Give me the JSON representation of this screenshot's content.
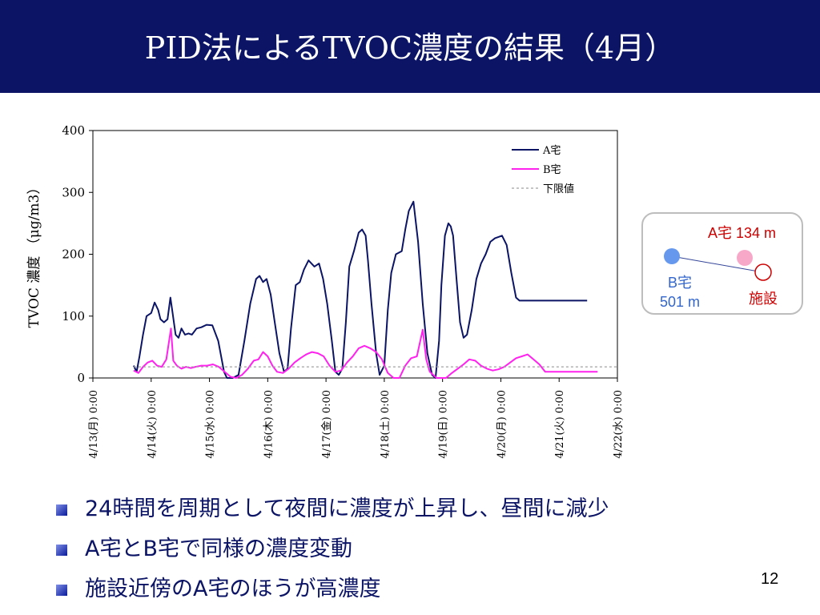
{
  "slide": {
    "title": "PID法によるTVOC濃度の結果（4月）",
    "page_number": "12",
    "bullets": [
      "24時間を周期として夜間に濃度が上昇し、昼間に減少",
      "A宅とB宅で同様の濃度変動",
      "施設近傍のA宅のほうが高濃度"
    ]
  },
  "inset": {
    "house_a_label": "A宅 134 m",
    "house_b_name": "B宅",
    "house_b_distance": "501 m",
    "facility_label": "施設"
  },
  "colors": {
    "header_bg": "#0b1465",
    "series_a": "#0b1465",
    "series_b": "#ff22ee",
    "limit": "#a0a0a0",
    "house_a_dot": "#f7a8c8",
    "house_b_dot": "#6699ee",
    "label_red": "#cc0000",
    "label_blue": "#3366cc"
  },
  "chart_data": {
    "type": "line",
    "ylabel": "TVOC 濃度 （μg/m3）",
    "ylim": [
      0,
      400
    ],
    "yticks": [
      0,
      100,
      200,
      300,
      400
    ],
    "xlim": [
      0,
      9
    ],
    "xticks": [
      "4/13(月) 0:00",
      "4/14(火) 0:00",
      "4/15(水) 0:00",
      "4/16(木) 0:00",
      "4/17(金) 0:00",
      "4/18(土) 0:00",
      "4/19(日) 0:00",
      "4/20(月) 0:00",
      "4/21(火) 0:00",
      "4/22(水) 0:00"
    ],
    "legend_position": "top-right",
    "series": [
      {
        "name": "A宅",
        "x": [
          0.7,
          0.75,
          0.8,
          0.86,
          0.92,
          1.0,
          1.06,
          1.12,
          1.16,
          1.22,
          1.28,
          1.33,
          1.36,
          1.42,
          1.47,
          1.52,
          1.58,
          1.64,
          1.7,
          1.78,
          1.86,
          1.95,
          2.05,
          2.15,
          2.25,
          2.3,
          2.4,
          2.5,
          2.6,
          2.7,
          2.8,
          2.86,
          2.92,
          2.98,
          3.05,
          3.12,
          3.2,
          3.28,
          3.34,
          3.4,
          3.48,
          3.55,
          3.62,
          3.7,
          3.8,
          3.88,
          3.95,
          4.02,
          4.1,
          4.16,
          4.22,
          4.28,
          4.34,
          4.4,
          4.48,
          4.56,
          4.62,
          4.68,
          4.72,
          4.78,
          4.86,
          4.92,
          5.0,
          5.06,
          5.12,
          5.2,
          5.3,
          5.36,
          5.42,
          5.5,
          5.58,
          5.66,
          5.74,
          5.82,
          5.88,
          5.94,
          5.98,
          6.04,
          6.1,
          6.14,
          6.18,
          6.24,
          6.3,
          6.36,
          6.42,
          6.5,
          6.58,
          6.66,
          6.74,
          6.82,
          6.9,
          6.96,
          7.02,
          7.1,
          7.18,
          7.26,
          7.32,
          7.38,
          7.46,
          7.54,
          7.6,
          7.66,
          7.74,
          7.82,
          7.9,
          7.98,
          8.04,
          8.1,
          8.16,
          8.22,
          8.28,
          8.34,
          8.4,
          8.44,
          8.48
        ],
        "values": [
          20,
          10,
          35,
          70,
          100,
          105,
          122,
          110,
          95,
          90,
          95,
          130,
          110,
          70,
          65,
          80,
          70,
          72,
          70,
          80,
          82,
          86,
          85,
          60,
          10,
          0,
          0,
          5,
          60,
          120,
          160,
          165,
          155,
          160,
          135,
          90,
          40,
          10,
          15,
          80,
          150,
          155,
          175,
          190,
          180,
          185,
          160,
          120,
          60,
          10,
          5,
          15,
          90,
          180,
          205,
          235,
          240,
          230,
          190,
          120,
          40,
          5,
          20,
          110,
          170,
          200,
          205,
          240,
          270,
          285,
          220,
          120,
          40,
          5,
          0,
          60,
          150,
          230,
          250,
          245,
          230,
          160,
          90,
          65,
          70,
          110,
          160,
          185,
          200,
          220,
          226,
          228,
          230,
          215,
          170,
          130,
          125,
          125,
          125,
          125,
          125,
          125,
          125,
          125,
          125,
          125,
          125,
          125,
          125,
          125,
          125,
          125,
          125,
          125,
          125
        ],
        "dummy": true
      },
      {
        "name": "B宅",
        "x": [
          0.7,
          0.78,
          0.86,
          0.94,
          1.02,
          1.1,
          1.18,
          1.26,
          1.34,
          1.38,
          1.44,
          1.52,
          1.6,
          1.68,
          1.76,
          1.86,
          1.96,
          2.06,
          2.16,
          2.26,
          2.36,
          2.46,
          2.56,
          2.66,
          2.76,
          2.84,
          2.92,
          3.0,
          3.08,
          3.16,
          3.26,
          3.36,
          3.46,
          3.56,
          3.66,
          3.76,
          3.86,
          3.96,
          4.06,
          4.16,
          4.26,
          4.36,
          4.46,
          4.56,
          4.66,
          4.76,
          4.86,
          4.96,
          5.06,
          5.16,
          5.26,
          5.36,
          5.46,
          5.56,
          5.66,
          5.72,
          5.78,
          5.84,
          5.9,
          5.96,
          6.06,
          6.16,
          6.26,
          6.36,
          6.46,
          6.56,
          6.66,
          6.76,
          6.86,
          6.96,
          7.06,
          7.16,
          7.26,
          7.36,
          7.46,
          7.56,
          7.66,
          7.76,
          7.86,
          7.96,
          8.06,
          8.16,
          8.26,
          8.36,
          8.46,
          8.56,
          8.66
        ],
        "values": [
          12,
          8,
          18,
          25,
          28,
          20,
          18,
          30,
          80,
          28,
          20,
          15,
          18,
          16,
          18,
          20,
          20,
          22,
          18,
          10,
          2,
          0,
          5,
          15,
          28,
          30,
          42,
          35,
          20,
          10,
          8,
          15,
          25,
          32,
          38,
          42,
          40,
          35,
          20,
          10,
          12,
          25,
          35,
          48,
          52,
          48,
          42,
          30,
          8,
          0,
          0,
          20,
          32,
          35,
          78,
          30,
          10,
          5,
          0,
          0,
          0,
          8,
          15,
          22,
          30,
          28,
          20,
          15,
          12,
          14,
          18,
          25,
          32,
          35,
          38,
          30,
          22,
          10,
          10,
          10,
          10,
          10,
          10,
          10,
          10,
          10,
          10
        ],
        "dummy": true
      },
      {
        "name": "下限値",
        "x": [
          0.7,
          9.0
        ],
        "values": [
          18,
          18
        ]
      }
    ]
  }
}
